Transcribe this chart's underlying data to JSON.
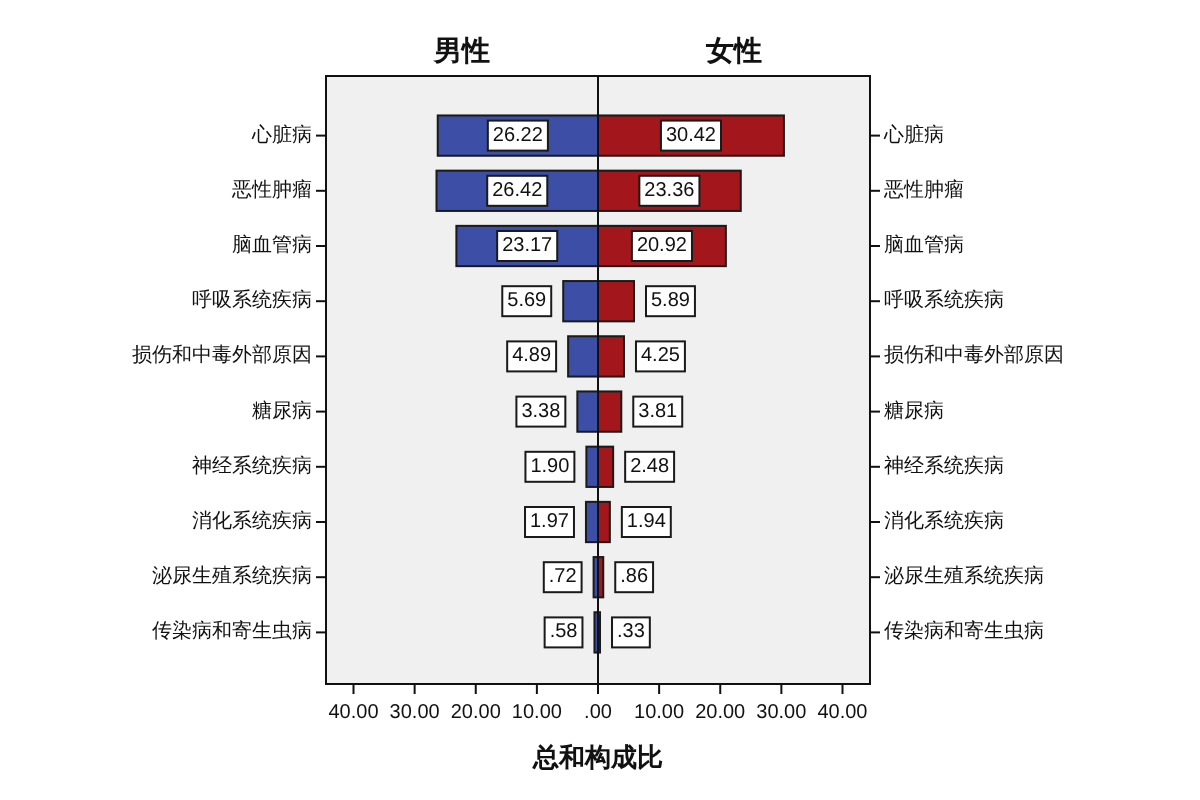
{
  "chart_data": [
    {
      "type": "bar",
      "orientation": "horizontal",
      "title": "男性",
      "xlabel": "总和构成比",
      "categories": [
        "心脏病",
        "恶性肿瘤",
        "脑血管病",
        "呼吸系统疾病",
        "损伤和中毒外部原因",
        "糖尿病",
        "神经系统疾病",
        "消化系统疾病",
        "泌尿生殖系统疾病",
        "传染病和寄生虫病"
      ],
      "values": [
        26.22,
        26.42,
        23.17,
        5.69,
        4.89,
        3.38,
        1.9,
        1.97,
        0.72,
        0.58
      ],
      "value_labels": [
        "26.22",
        "26.42",
        "23.17",
        "5.69",
        "4.89",
        "3.38",
        "1.90",
        "1.97",
        ".72",
        ".58"
      ],
      "color": "#3c4ea6",
      "xlim": [
        44.5,
        0
      ],
      "xticks": [
        {
          "value": 40,
          "label": "40.00"
        },
        {
          "value": 30,
          "label": "30.00"
        },
        {
          "value": 20,
          "label": "20.00"
        },
        {
          "value": 10,
          "label": "10.00"
        },
        {
          "value": 0,
          "label": ".00"
        }
      ]
    },
    {
      "type": "bar",
      "orientation": "horizontal",
      "title": "女性",
      "categories": [
        "心脏病",
        "恶性肿瘤",
        "脑血管病",
        "呼吸系统疾病",
        "损伤和中毒外部原因",
        "糖尿病",
        "神经系统疾病",
        "消化系统疾病",
        "泌尿生殖系统疾病",
        "传染病和寄生虫病"
      ],
      "values": [
        30.42,
        23.36,
        20.92,
        5.89,
        4.25,
        3.81,
        2.48,
        1.94,
        0.86,
        0.33
      ],
      "value_labels": [
        "30.42",
        "23.36",
        "20.92",
        "5.89",
        "4.25",
        "3.81",
        "2.48",
        "1.94",
        ".86",
        ".33"
      ],
      "color": "#a3161b",
      "xlim": [
        0,
        44.5
      ],
      "xticks": [
        {
          "value": 0,
          "label": null
        },
        {
          "value": 10,
          "label": "10.00"
        },
        {
          "value": 20,
          "label": "20.00"
        },
        {
          "value": 30,
          "label": "30.00"
        },
        {
          "value": 40,
          "label": "40.00"
        }
      ]
    }
  ]
}
